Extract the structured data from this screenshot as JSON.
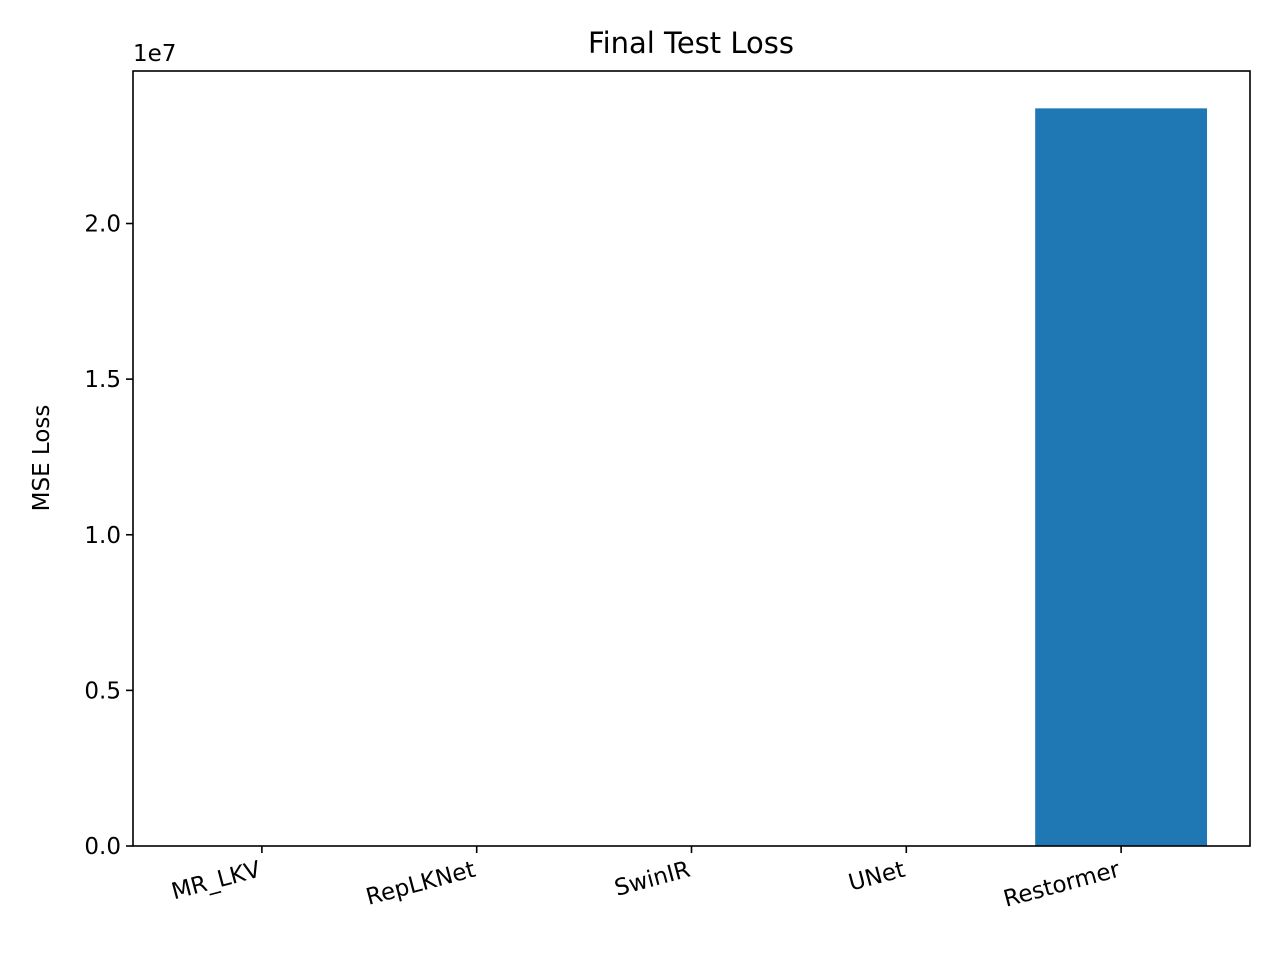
{
  "chart_data": {
    "type": "bar",
    "title": "Final Test Loss",
    "xlabel": "",
    "ylabel": "MSE Loss",
    "categories": [
      "MR_LKV",
      "RepLKNet",
      "SwinIR",
      "UNet",
      "Restormer"
    ],
    "values": [
      0,
      0,
      0,
      0,
      23700000
    ],
    "ylim": [
      0,
      24900000
    ],
    "yticks": [
      0,
      5000000,
      10000000,
      15000000,
      20000000
    ],
    "ytick_labels": [
      "0.0",
      "0.5",
      "1.0",
      "1.5",
      "2.0"
    ],
    "y_offset_label": "1e7",
    "bar_color": "#1f77b4",
    "grid": false,
    "legend": "none"
  }
}
